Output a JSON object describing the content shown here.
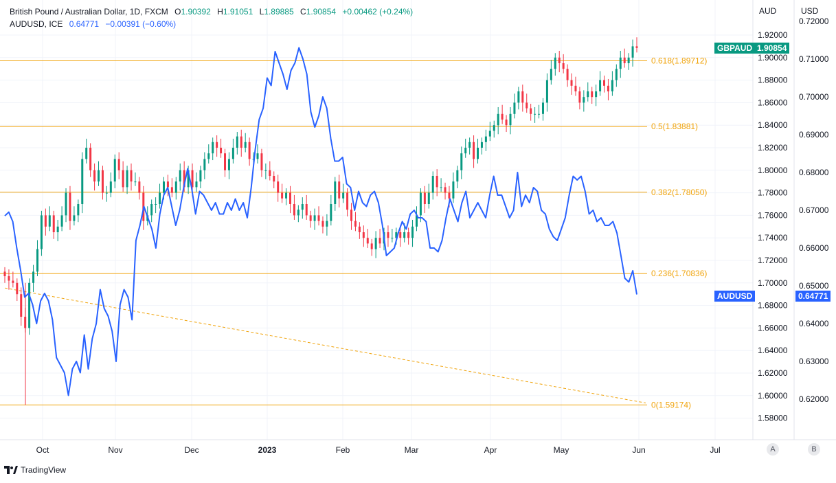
{
  "header": {
    "symbol_name": "British Pound / Australian Dollar, 1D, FXCM",
    "o_label": "O",
    "o_value": "1.90392",
    "h_label": "H",
    "h_value": "1.91051",
    "l_label": "L",
    "l_value": "1.89885",
    "c_label": "C",
    "c_value": "1.90854",
    "change": "+0.00462 (+0.24%)",
    "second_symbol": "AUDUSD, ICE",
    "second_value": "0.64771",
    "second_change": "−0.00391 (−0.60%)"
  },
  "axes": {
    "left_currency": "AUD",
    "right_currency": "USD",
    "gbpaud_ticks": [
      "1.92000",
      "1.90000",
      "1.88000",
      "1.86000",
      "1.84000",
      "1.82000",
      "1.80000",
      "1.78000",
      "1.76000",
      "1.74000",
      "1.72000",
      "1.70000",
      "1.68000",
      "1.66000",
      "1.64000",
      "1.62000",
      "1.60000",
      "1.58000"
    ],
    "audusd_ticks": [
      "0.72000",
      "0.71000",
      "0.70000",
      "0.69000",
      "0.68000",
      "0.67000",
      "0.66000",
      "0.65000",
      "0.64000",
      "0.63000",
      "0.62000"
    ],
    "x_labels": [
      "Oct",
      "Nov",
      "Dec",
      "2023",
      "Feb",
      "Mar",
      "Apr",
      "May",
      "Jun",
      "Jul"
    ],
    "scale_buttons": [
      "A",
      "B"
    ]
  },
  "badges": {
    "gbpaud_name": "GBPAUD",
    "gbpaud_value": "1.90854",
    "audusd_name": "AUDUSD",
    "audusd_value": "0.64771"
  },
  "fib_labels": [
    "0.618(1.89712)",
    "0.5(1.83881)",
    "0.382(1.78050)",
    "0.236(1.70836)",
    "0(1.59174)"
  ],
  "footer": {
    "brand": "TradingView"
  },
  "colors": {
    "up": "#089981",
    "down": "#f23645",
    "fib": "#f0a30a",
    "audusd": "#2962ff",
    "grid": "#f0f3fa",
    "text": "#131722"
  },
  "chart_data": {
    "type": "line",
    "title": "British Pound / Australian Dollar, 1D, FXCM with AUDUSD, ICE overlay",
    "gbpaud_range": [
      1.57,
      1.94
    ],
    "audusd_range": [
      0.612,
      0.724
    ],
    "x_months": [
      "Oct",
      "Nov",
      "Dec",
      "2023",
      "Feb",
      "Mar",
      "Apr",
      "May",
      "Jun",
      "Jul"
    ],
    "fib_levels": [
      {
        "ratio": 0.618,
        "price": 1.89712
      },
      {
        "ratio": 0.5,
        "price": 1.83881
      },
      {
        "ratio": 0.382,
        "price": 1.7805
      },
      {
        "ratio": 0.236,
        "price": 1.70836
      },
      {
        "ratio": 0,
        "price": 1.59174
      }
    ],
    "dashed_trendline": {
      "start": 1.6955,
      "end": 1.5935
    },
    "gbpaud_close": [
      1.706,
      1.702,
      1.7,
      1.69,
      1.67,
      1.66,
      1.7,
      1.71,
      1.73,
      1.76,
      1.75,
      1.76,
      1.745,
      1.75,
      1.76,
      1.78,
      1.755,
      1.76,
      1.77,
      1.81,
      1.82,
      1.8,
      1.79,
      1.8,
      1.78,
      1.78,
      1.79,
      1.81,
      1.8,
      1.785,
      1.8,
      1.79,
      1.79,
      1.78,
      1.755,
      1.76,
      1.77,
      1.77,
      1.78,
      1.79,
      1.785,
      1.78,
      1.79,
      1.8,
      1.785,
      1.8,
      1.785,
      1.79,
      1.8,
      1.81,
      1.815,
      1.825,
      1.82,
      1.815,
      1.8,
      1.81,
      1.82,
      1.83,
      1.82,
      1.825,
      1.81,
      1.81,
      1.815,
      1.8,
      1.8,
      1.795,
      1.79,
      1.78,
      1.775,
      1.78,
      1.77,
      1.76,
      1.765,
      1.77,
      1.76,
      1.755,
      1.76,
      1.755,
      1.75,
      1.755,
      1.77,
      1.79,
      1.775,
      1.78,
      1.765,
      1.755,
      1.75,
      1.745,
      1.74,
      1.735,
      1.73,
      1.74,
      1.735,
      1.745,
      1.74,
      1.74,
      1.745,
      1.74,
      1.745,
      1.74,
      1.75,
      1.76,
      1.78,
      1.77,
      1.78,
      1.795,
      1.785,
      1.785,
      1.78,
      1.775,
      1.79,
      1.8,
      1.815,
      1.82,
      1.825,
      1.81,
      1.82,
      1.825,
      1.83,
      1.835,
      1.84,
      1.85,
      1.845,
      1.84,
      1.85,
      1.86,
      1.87,
      1.86,
      1.855,
      1.85,
      1.85,
      1.85,
      1.86,
      1.88,
      1.89,
      1.9,
      1.895,
      1.89,
      1.88,
      1.875,
      1.87,
      1.86,
      1.865,
      1.87,
      1.865,
      1.87,
      1.88,
      1.875,
      1.87,
      1.88,
      1.89,
      1.9,
      1.895,
      1.9,
      1.91,
      1.90854
    ],
    "audusd_close": [
      0.6685,
      0.6695,
      0.667,
      0.66,
      0.654,
      0.647,
      0.648,
      0.645,
      0.64,
      0.646,
      0.648,
      0.646,
      0.641,
      0.631,
      0.629,
      0.627,
      0.621,
      0.628,
      0.63,
      0.627,
      0.637,
      0.628,
      0.636,
      0.64,
      0.649,
      0.644,
      0.642,
      0.638,
      0.63,
      0.645,
      0.649,
      0.647,
      0.641,
      0.662,
      0.666,
      0.671,
      0.668,
      0.665,
      0.66,
      0.669,
      0.674,
      0.676,
      0.671,
      0.666,
      0.67,
      0.676,
      0.681,
      0.676,
      0.669,
      0.675,
      0.674,
      0.672,
      0.67,
      0.672,
      0.669,
      0.669,
      0.672,
      0.67,
      0.673,
      0.67,
      0.672,
      0.668,
      0.676,
      0.686,
      0.694,
      0.697,
      0.705,
      0.703,
      0.712,
      0.709,
      0.706,
      0.702,
      0.707,
      0.709,
      0.713,
      0.71,
      0.706,
      0.696,
      0.692,
      0.695,
      0.7,
      0.697,
      0.689,
      0.683,
      0.683,
      0.684,
      0.677,
      0.676,
      0.67,
      0.675,
      0.672,
      0.671,
      0.674,
      0.675,
      0.672,
      0.666,
      0.658,
      0.659,
      0.66,
      0.664,
      0.667,
      0.665,
      0.669,
      0.67,
      0.668,
      0.668,
      0.667,
      0.66,
      0.66,
      0.659,
      0.662,
      0.668,
      0.673,
      0.67,
      0.667,
      0.672,
      0.675,
      0.668,
      0.67,
      0.672,
      0.67,
      0.668,
      0.674,
      0.679,
      0.674,
      0.674,
      0.671,
      0.668,
      0.67,
      0.68,
      0.671,
      0.674,
      0.672,
      0.676,
      0.675,
      0.67,
      0.669,
      0.665,
      0.663,
      0.662,
      0.665,
      0.668,
      0.674,
      0.679,
      0.678,
      0.679,
      0.675,
      0.669,
      0.67,
      0.667,
      0.668,
      0.666,
      0.666,
      0.667,
      0.664,
      0.658,
      0.652,
      0.651,
      0.654,
      0.6477
    ]
  }
}
